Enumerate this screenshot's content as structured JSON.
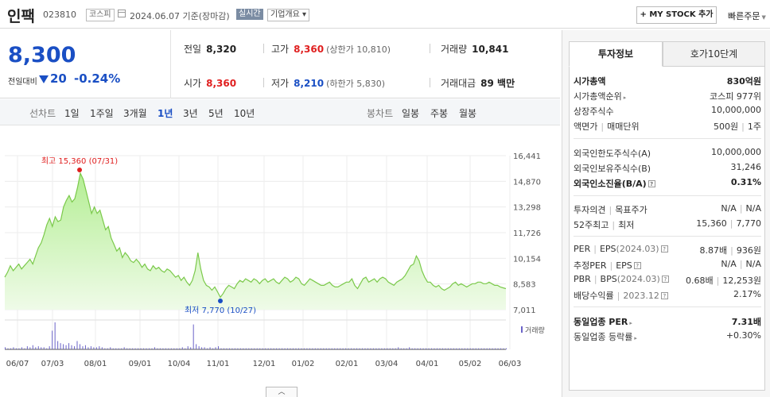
{
  "header": {
    "name": "인팩",
    "code": "023810",
    "market": "코스피",
    "date_text": "2024.06.07 기준(장마감)",
    "realtime_badge": "실시간",
    "company_info": "기업개요 ▾",
    "my_stock_button": "+ MY STOCK 추가",
    "quick_order": "빠른주문"
  },
  "summary": {
    "current_price": "8,300",
    "compare_label": "전일대비",
    "change": "20",
    "change_pct": "-0.24%",
    "direction": "down",
    "prev_close": {
      "label": "전일",
      "value": "8,320"
    },
    "high": {
      "label": "고가",
      "value": "8,360",
      "sub": "(상한가 10,810)"
    },
    "volume": {
      "label": "거래량",
      "value": "10,841"
    },
    "open": {
      "label": "시가",
      "value": "8,360"
    },
    "low": {
      "label": "저가",
      "value": "8,210",
      "sub": "(하한가 5,830)"
    },
    "amount": {
      "label": "거래대금",
      "value": "89 백만"
    }
  },
  "period_bar": {
    "line_chart_label": "선차트",
    "periods": [
      "1일",
      "1주일",
      "3개월",
      "1년",
      "3년",
      "5년",
      "10년"
    ],
    "active_period": "1년",
    "candle_label": "봉차트",
    "candles": [
      "일봉",
      "주봉",
      "월봉"
    ]
  },
  "chart_data": {
    "type": "area",
    "y_ticks": [
      "16,441",
      "14,870",
      "13,298",
      "11,726",
      "10,154",
      "8,583",
      "7,011"
    ],
    "ylim": [
      7011,
      16441
    ],
    "x_ticks": [
      "06/07",
      "07/03",
      "08/01",
      "09/01",
      "10/04",
      "11/01",
      "12/01",
      "01/02",
      "02/01",
      "03/04",
      "04/01",
      "05/02",
      "06/03"
    ],
    "high_annotation": "최고 15,360 (07/31)",
    "low_annotation": "최저 7,770 (10/27)",
    "volume_label": "거래량",
    "price_values": [
      9000,
      9300,
      9700,
      9400,
      9600,
      9800,
      9500,
      9700,
      9900,
      10100,
      9800,
      10300,
      10800,
      11100,
      11600,
      12200,
      12600,
      12100,
      12700,
      12400,
      12500,
      13300,
      13700,
      14000,
      13600,
      13800,
      14500,
      15360,
      15000,
      14300,
      13600,
      12900,
      13300,
      12900,
      13100,
      12500,
      11900,
      12100,
      11400,
      11000,
      10600,
      10800,
      10200,
      10500,
      10300,
      10000,
      9900,
      10100,
      9900,
      9600,
      9800,
      9500,
      9400,
      9700,
      9500,
      9600,
      9400,
      9300,
      9500,
      9400,
      9200,
      9000,
      9100,
      8800,
      9000,
      8700,
      8500,
      8800,
      9400,
      10500,
      9500,
      8800,
      8500,
      8400,
      8200,
      8400,
      8100,
      7770,
      8000,
      8300,
      8500,
      8400,
      8300,
      8600,
      8800,
      8700,
      8900,
      8800,
      8700,
      8900,
      8800,
      8600,
      8800,
      8900,
      8700,
      8800,
      8900,
      8700,
      8600,
      8800,
      9000,
      8900,
      8700,
      8800,
      9000,
      8900,
      8600,
      8500,
      8700,
      8900,
      8800,
      8700,
      8600,
      8500,
      8500,
      8600,
      8700,
      8500,
      8400,
      8400,
      8500,
      8600,
      8700,
      8700,
      8900,
      8500,
      8300,
      8600,
      8900,
      9000,
      8700,
      8800,
      8900,
      8700,
      8900,
      9000,
      8900,
      8700,
      8600,
      8500,
      8700,
      8800,
      8900,
      9100,
      9400,
      9700,
      9800,
      10300,
      10000,
      9400,
      9000,
      8700,
      8700,
      8500,
      8400,
      8500,
      8300,
      8200,
      8300,
      8400,
      8600,
      8700,
      8500,
      8600,
      8500,
      8400,
      8500,
      8600,
      8600,
      8700,
      8700,
      8600,
      8600,
      8700,
      8600,
      8500,
      8500,
      8400,
      8350,
      8300
    ],
    "volume_values": [
      2,
      1,
      1,
      2,
      1,
      1,
      2,
      1,
      3,
      2,
      4,
      2,
      3,
      2,
      2,
      1,
      3,
      18,
      26,
      8,
      6,
      5,
      4,
      6,
      4,
      3,
      8,
      5,
      3,
      4,
      2,
      3,
      2,
      2,
      3,
      2,
      1,
      1,
      2,
      1,
      1,
      1,
      1,
      2,
      1,
      1,
      1,
      1,
      1,
      1,
      1,
      1,
      1,
      1,
      2,
      1,
      1,
      1,
      1,
      1,
      1,
      1,
      1,
      1,
      2,
      1,
      3,
      2,
      24,
      5,
      3,
      2,
      2,
      1,
      2,
      1,
      2,
      3,
      1,
      1,
      1,
      1,
      1,
      1,
      1,
      1,
      1,
      1,
      1,
      1,
      1,
      1,
      1,
      1,
      1,
      1,
      1,
      1,
      1,
      1,
      1,
      1,
      1,
      1,
      1,
      1,
      1,
      1,
      1,
      1,
      1,
      1,
      1,
      1,
      1,
      1,
      1,
      1,
      1,
      1,
      1,
      1,
      1,
      1,
      1,
      1,
      1,
      1,
      1,
      1,
      1,
      1,
      1,
      1,
      1,
      1,
      1,
      1,
      1,
      1,
      1,
      1,
      2,
      1,
      1,
      1,
      2,
      1,
      1,
      1,
      1,
      1,
      1,
      1,
      1,
      1,
      1,
      1,
      1,
      1,
      1,
      1,
      1,
      1,
      1,
      1,
      1,
      1,
      1,
      1,
      1,
      1,
      1,
      1,
      1,
      1,
      1,
      1,
      1,
      1,
      1,
      1
    ],
    "colors": {
      "line": "#7bc94b",
      "fill_top": "#b4ee94",
      "fill_bottom": "#effbe8",
      "high": "#e02020",
      "low": "#1a4fc4",
      "volume": "#6b64c8"
    }
  },
  "right_panel": {
    "tabs": [
      "투자정보",
      "호가10단계"
    ],
    "active_tab": "투자정보",
    "market_cap": {
      "label": "시가총액",
      "value": "830억원"
    },
    "market_cap_rank": {
      "label": "시가총액순위",
      "value": "코스피 977위"
    },
    "shares": {
      "label": "상장주식수",
      "value": "10,000,000"
    },
    "par": {
      "label1": "액면가",
      "label2": "매매단위",
      "value1": "500원",
      "value2": "1주"
    },
    "foreign_limit": {
      "label": "외국인한도주식수(A)",
      "value": "10,000,000"
    },
    "foreign_hold": {
      "label": "외국인보유주식수(B)",
      "value": "31,246"
    },
    "foreign_ratio": {
      "label": "외국인소진율(B/A)",
      "value": "0.31%"
    },
    "opinion": {
      "label1": "투자의견",
      "label2": "목표주가",
      "value1": "N/A",
      "value2": "N/A"
    },
    "week52": {
      "label1": "52주최고",
      "label2": "최저",
      "value1": "15,360",
      "value2": "7,770"
    },
    "per": {
      "label1": "PER",
      "label2": "EPS",
      "period": "(2024.03)",
      "value1": "8.87배",
      "value2": "936원"
    },
    "est_per": {
      "label1": "추정PER",
      "label2": "EPS",
      "value1": "N/A",
      "value2": "N/A"
    },
    "pbr": {
      "label1": "PBR",
      "label2": "BPS",
      "period": "(2024.03)",
      "value1": "0.68배",
      "value2": "12,253원"
    },
    "dividend": {
      "label": "배당수익률",
      "period": "2023.12",
      "value": "2.17%"
    },
    "industry_per": {
      "label": "동일업종 PER",
      "value": "7.31배"
    },
    "industry_rate": {
      "label": "동일업종 등락률",
      "value": "+0.30%"
    }
  }
}
